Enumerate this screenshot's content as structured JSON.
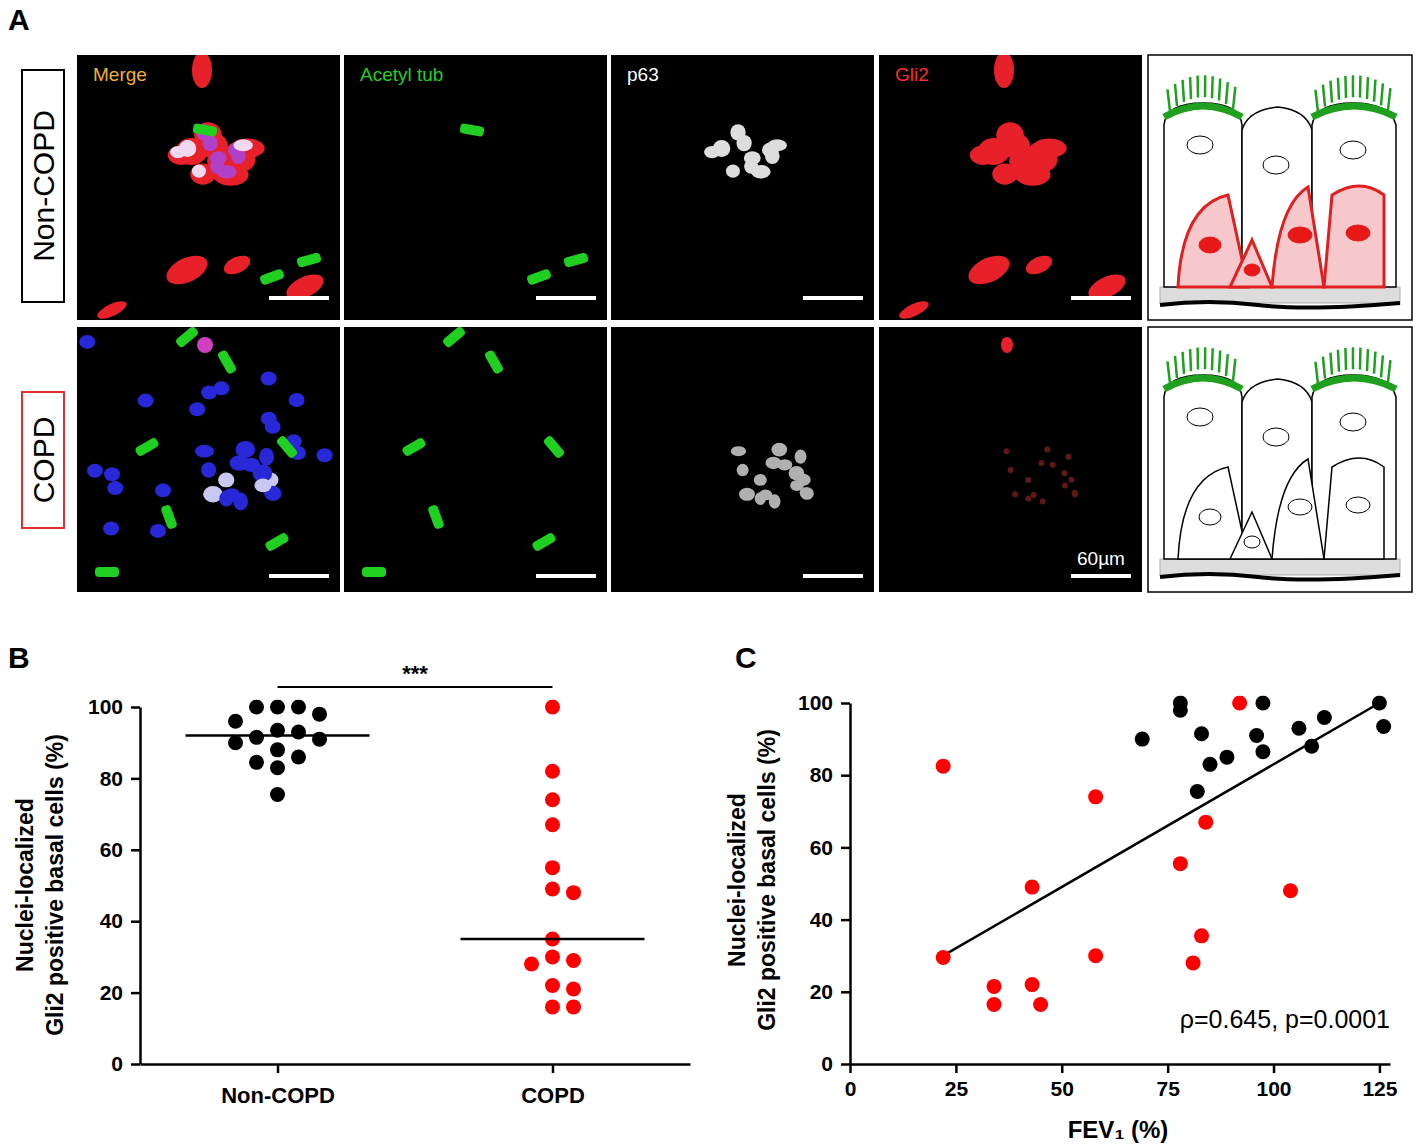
{
  "panel_labels": [
    "A",
    "B",
    "C"
  ],
  "panel_a": {
    "rows": [
      "Non-COPD",
      "COPD"
    ],
    "channels": [
      "Merge",
      "Acetyl tub",
      "p63",
      "Gli2"
    ],
    "scale_bar": "60µm"
  },
  "chart_data": [
    {
      "type": "strip",
      "categories": [
        "Non-COPD",
        "COPD"
      ],
      "values": [
        [
          100,
          100,
          100,
          98,
          96,
          93.5,
          93,
          91.5,
          91,
          90,
          88,
          86,
          84.5,
          83,
          75.5
        ],
        [
          100,
          82,
          74,
          67,
          55,
          49,
          48,
          35,
          30,
          29,
          28,
          22,
          21,
          16,
          16
        ]
      ],
      "colors": [
        "#000000",
        "#ff0000"
      ],
      "medians": [
        92,
        35
      ],
      "ylabel": [
        "Nuclei-localized",
        "Gli2 positive basal cells (%)"
      ],
      "ylim": [
        0,
        100
      ],
      "yticks": [
        0,
        20,
        40,
        60,
        80,
        100
      ],
      "annotations": [
        "***"
      ]
    },
    {
      "type": "scatter",
      "xlabel": "FEV₁ (%)",
      "ylabel": [
        "Nuclei-localized",
        "Gli2 positive basal cells (%)"
      ],
      "xlim": [
        0,
        127.5
      ],
      "xticks": [
        0,
        25,
        50,
        75,
        100,
        125
      ],
      "ylim": [
        0,
        100
      ],
      "yticks": [
        0,
        20,
        40,
        60,
        80,
        100
      ],
      "series": [
        {
          "color": "#000000",
          "x": [
            78,
            78,
            97.5,
            125,
            126,
            69,
            83,
            89,
            85,
            82,
            97.5,
            96,
            106,
            109,
            112
          ],
          "values": [
            100,
            98,
            100,
            100,
            93.5,
            90,
            91.5,
            85,
            83,
            75.5,
            86.5,
            91,
            93,
            88,
            96
          ]
        },
        {
          "color": "#ff0000",
          "x": [
            22,
            22,
            34,
            34,
            43,
            43,
            45,
            58,
            58,
            78,
            83,
            81,
            84,
            92,
            104
          ],
          "values": [
            82.5,
            29.5,
            21.5,
            16.5,
            49,
            22,
            16.5,
            74,
            30,
            55.5,
            35.5,
            28,
            67,
            100,
            48
          ]
        }
      ],
      "trend_line": {
        "x": [
          22,
          125
        ],
        "values": [
          30,
          100
        ]
      },
      "annotations": [
        "ρ=0.645, p=0.0001"
      ]
    }
  ]
}
